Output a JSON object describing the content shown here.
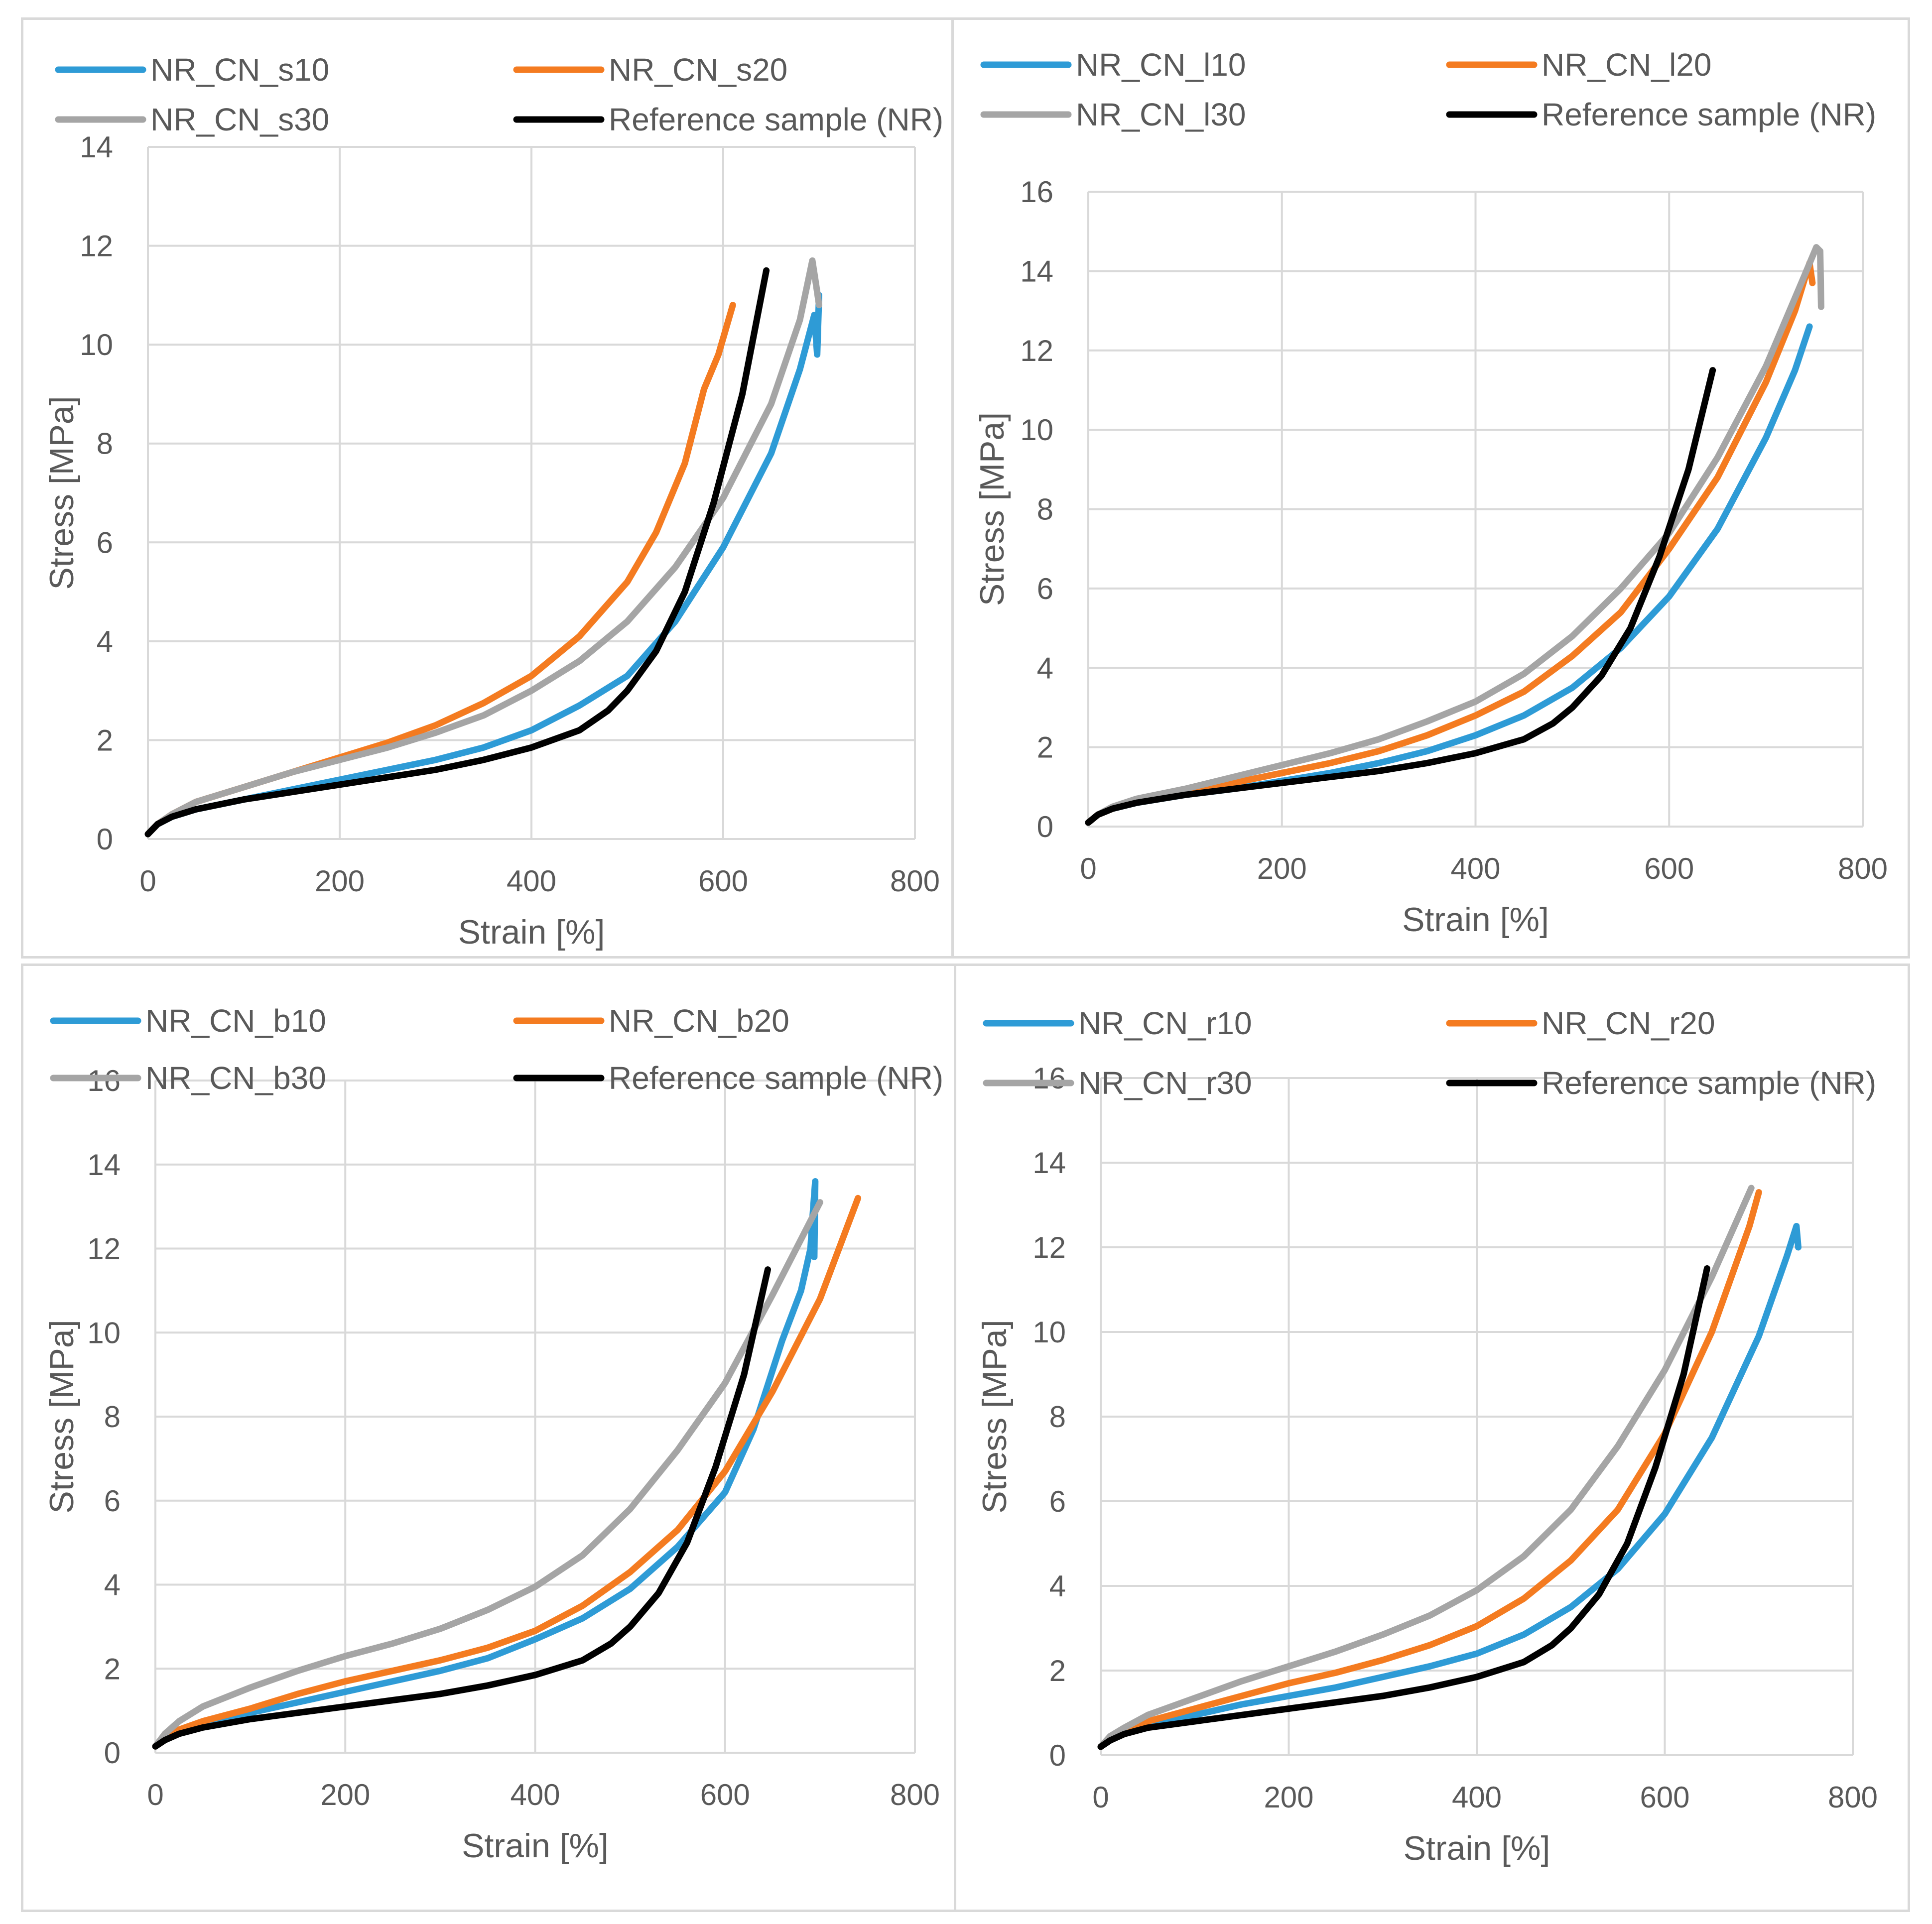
{
  "chart_data": [
    {
      "type": "line",
      "xlabel": "Strain [%]",
      "ylabel": "Stress [MPa]",
      "xlim": [
        0,
        800
      ],
      "ylim": [
        0,
        14
      ],
      "xticks": [
        0,
        200,
        400,
        600,
        800
      ],
      "yticks": [
        0,
        2,
        4,
        6,
        8,
        10,
        12,
        14
      ],
      "legend": "top",
      "series": [
        {
          "name": "NR_CN_s10",
          "color": "#2e9bd6",
          "x": [
            0,
            10,
            25,
            50,
            100,
            150,
            200,
            250,
            300,
            350,
            400,
            450,
            500,
            550,
            600,
            650,
            680,
            695,
            698,
            700
          ],
          "y": [
            0.1,
            0.3,
            0.45,
            0.6,
            0.8,
            1.0,
            1.2,
            1.4,
            1.6,
            1.85,
            2.2,
            2.7,
            3.3,
            4.4,
            5.9,
            7.8,
            9.5,
            10.6,
            9.8,
            11.0
          ]
        },
        {
          "name": "NR_CN_s20",
          "color": "#f47b20",
          "x": [
            0,
            10,
            25,
            50,
            100,
            150,
            200,
            250,
            300,
            350,
            400,
            450,
            500,
            530,
            560,
            580,
            595,
            610
          ],
          "y": [
            0.1,
            0.3,
            0.5,
            0.75,
            1.05,
            1.35,
            1.65,
            1.95,
            2.3,
            2.75,
            3.3,
            4.1,
            5.2,
            6.2,
            7.6,
            9.1,
            9.8,
            10.8
          ]
        },
        {
          "name": "NR_CN_s30",
          "color": "#a5a5a5",
          "x": [
            0,
            10,
            25,
            50,
            100,
            150,
            200,
            250,
            300,
            350,
            400,
            450,
            500,
            550,
            600,
            650,
            680,
            693,
            697,
            700
          ],
          "y": [
            0.1,
            0.3,
            0.5,
            0.75,
            1.05,
            1.35,
            1.6,
            1.85,
            2.15,
            2.5,
            3.0,
            3.6,
            4.4,
            5.5,
            6.9,
            8.8,
            10.5,
            11.7,
            11.2,
            10.8
          ]
        },
        {
          "name": "Reference sample (NR)",
          "color": "#000000",
          "x": [
            0,
            10,
            25,
            50,
            100,
            150,
            200,
            250,
            300,
            350,
            400,
            450,
            480,
            500,
            530,
            560,
            590,
            620,
            645
          ],
          "y": [
            0.1,
            0.3,
            0.45,
            0.6,
            0.8,
            0.95,
            1.1,
            1.25,
            1.4,
            1.6,
            1.85,
            2.2,
            2.6,
            3.0,
            3.8,
            5.0,
            6.8,
            9.0,
            11.5
          ]
        }
      ]
    },
    {
      "type": "line",
      "xlabel": "Strain [%]",
      "ylabel": "Stress [MPa]",
      "xlim": [
        0,
        800
      ],
      "ylim": [
        0,
        16
      ],
      "xticks": [
        0,
        200,
        400,
        600,
        800
      ],
      "yticks": [
        0,
        2,
        4,
        6,
        8,
        10,
        12,
        14,
        16
      ],
      "legend": "top",
      "series": [
        {
          "name": "NR_CN_l10",
          "color": "#2e9bd6",
          "x": [
            0,
            10,
            25,
            50,
            100,
            150,
            200,
            250,
            300,
            350,
            400,
            450,
            500,
            550,
            600,
            650,
            700,
            730,
            745
          ],
          "y": [
            0.1,
            0.3,
            0.45,
            0.6,
            0.8,
            0.95,
            1.15,
            1.35,
            1.6,
            1.9,
            2.3,
            2.8,
            3.5,
            4.5,
            5.8,
            7.5,
            9.8,
            11.5,
            12.6
          ]
        },
        {
          "name": "NR_CN_l20",
          "color": "#f47b20",
          "x": [
            0,
            10,
            25,
            50,
            100,
            150,
            200,
            250,
            300,
            350,
            400,
            450,
            500,
            550,
            600,
            650,
            700,
            730,
            745,
            748
          ],
          "y": [
            0.1,
            0.3,
            0.45,
            0.65,
            0.85,
            1.1,
            1.35,
            1.6,
            1.9,
            2.3,
            2.8,
            3.4,
            4.3,
            5.4,
            7.0,
            8.8,
            11.2,
            13.0,
            14.2,
            13.7
          ]
        },
        {
          "name": "NR_CN_l30",
          "color": "#a5a5a5",
          "x": [
            0,
            10,
            25,
            50,
            100,
            150,
            200,
            250,
            300,
            350,
            400,
            450,
            500,
            550,
            600,
            650,
            700,
            740,
            752,
            756,
            757
          ],
          "y": [
            0.1,
            0.3,
            0.5,
            0.7,
            0.95,
            1.25,
            1.55,
            1.85,
            2.2,
            2.65,
            3.15,
            3.85,
            4.8,
            6.0,
            7.4,
            9.3,
            11.6,
            13.9,
            14.6,
            14.5,
            13.1
          ]
        },
        {
          "name": "Reference sample (NR)",
          "color": "#000000",
          "x": [
            0,
            10,
            25,
            50,
            100,
            150,
            200,
            250,
            300,
            350,
            400,
            450,
            480,
            500,
            530,
            560,
            590,
            620,
            645
          ],
          "y": [
            0.1,
            0.3,
            0.45,
            0.6,
            0.8,
            0.95,
            1.1,
            1.25,
            1.4,
            1.6,
            1.85,
            2.2,
            2.6,
            3.0,
            3.8,
            5.0,
            6.8,
            9.0,
            11.5
          ]
        }
      ]
    },
    {
      "type": "line",
      "xlabel": "Strain [%]",
      "ylabel": "Stress [MPa]",
      "xlim": [
        0,
        800
      ],
      "ylim": [
        0,
        16
      ],
      "xticks": [
        0,
        200,
        400,
        600,
        800
      ],
      "yticks": [
        0,
        2,
        4,
        6,
        8,
        10,
        12,
        14,
        16
      ],
      "legend": "top",
      "series": [
        {
          "name": "NR_CN_b10",
          "color": "#2e9bd6",
          "x": [
            0,
            10,
            25,
            50,
            100,
            150,
            200,
            250,
            300,
            350,
            400,
            450,
            500,
            550,
            600,
            630,
            660,
            680,
            690,
            692,
            695,
            694
          ],
          "y": [
            0.15,
            0.35,
            0.5,
            0.7,
            0.95,
            1.2,
            1.45,
            1.7,
            1.95,
            2.25,
            2.7,
            3.2,
            3.9,
            4.9,
            6.2,
            7.7,
            9.8,
            11.0,
            12.0,
            12.7,
            13.6,
            11.8
          ]
        },
        {
          "name": "NR_CN_b20",
          "color": "#f47b20",
          "x": [
            0,
            10,
            25,
            50,
            100,
            150,
            200,
            250,
            300,
            350,
            400,
            450,
            500,
            550,
            600,
            650,
            700,
            740
          ],
          "y": [
            0.15,
            0.35,
            0.55,
            0.75,
            1.05,
            1.4,
            1.7,
            1.95,
            2.2,
            2.5,
            2.9,
            3.5,
            4.3,
            5.3,
            6.7,
            8.6,
            10.8,
            13.2
          ]
        },
        {
          "name": "NR_CN_b30",
          "color": "#a5a5a5",
          "x": [
            0,
            10,
            25,
            50,
            100,
            150,
            200,
            250,
            300,
            350,
            400,
            450,
            500,
            550,
            600,
            650,
            700
          ],
          "y": [
            0.15,
            0.45,
            0.75,
            1.1,
            1.55,
            1.95,
            2.3,
            2.6,
            2.95,
            3.4,
            3.95,
            4.7,
            5.8,
            7.2,
            8.8,
            10.9,
            13.1
          ]
        },
        {
          "name": "Reference sample (NR)",
          "color": "#000000",
          "x": [
            0,
            10,
            25,
            50,
            100,
            150,
            200,
            250,
            300,
            350,
            400,
            450,
            480,
            500,
            530,
            560,
            590,
            620,
            645
          ],
          "y": [
            0.15,
            0.3,
            0.45,
            0.6,
            0.8,
            0.95,
            1.1,
            1.25,
            1.4,
            1.6,
            1.85,
            2.2,
            2.6,
            3.0,
            3.8,
            5.0,
            6.8,
            9.0,
            11.5
          ]
        }
      ]
    },
    {
      "type": "line",
      "xlabel": "Strain [%]",
      "ylabel": "Stress [MPa]",
      "xlim": [
        0,
        800
      ],
      "ylim": [
        0,
        16
      ],
      "xticks": [
        0,
        200,
        400,
        600,
        800
      ],
      "yticks": [
        0,
        2,
        4,
        6,
        8,
        10,
        12,
        14,
        16
      ],
      "legend": "top",
      "series": [
        {
          "name": "NR_CN_r10",
          "color": "#2e9bd6",
          "x": [
            0,
            10,
            25,
            50,
            100,
            150,
            200,
            250,
            300,
            350,
            400,
            450,
            500,
            550,
            600,
            650,
            700,
            730,
            740,
            742
          ],
          "y": [
            0.2,
            0.4,
            0.55,
            0.7,
            0.95,
            1.2,
            1.4,
            1.6,
            1.85,
            2.1,
            2.4,
            2.85,
            3.5,
            4.4,
            5.7,
            7.5,
            9.9,
            11.8,
            12.5,
            12.0
          ]
        },
        {
          "name": "NR_CN_r20",
          "color": "#f47b20",
          "x": [
            0,
            10,
            25,
            50,
            100,
            150,
            200,
            250,
            300,
            350,
            400,
            450,
            500,
            550,
            600,
            650,
            690,
            700
          ],
          "y": [
            0.2,
            0.4,
            0.55,
            0.8,
            1.1,
            1.4,
            1.7,
            1.95,
            2.25,
            2.6,
            3.05,
            3.7,
            4.6,
            5.8,
            7.6,
            10.0,
            12.5,
            13.3
          ]
        },
        {
          "name": "NR_CN_r30",
          "color": "#a5a5a5",
          "x": [
            0,
            10,
            25,
            50,
            100,
            150,
            200,
            250,
            300,
            350,
            400,
            450,
            500,
            550,
            600,
            650,
            692
          ],
          "y": [
            0.2,
            0.45,
            0.65,
            0.95,
            1.35,
            1.75,
            2.1,
            2.45,
            2.85,
            3.3,
            3.9,
            4.7,
            5.8,
            7.3,
            9.1,
            11.3,
            13.4
          ]
        },
        {
          "name": "Reference sample (NR)",
          "color": "#000000",
          "x": [
            0,
            10,
            25,
            50,
            100,
            150,
            200,
            250,
            300,
            350,
            400,
            450,
            480,
            500,
            530,
            560,
            590,
            620,
            645
          ],
          "y": [
            0.2,
            0.35,
            0.5,
            0.65,
            0.8,
            0.95,
            1.1,
            1.25,
            1.4,
            1.6,
            1.85,
            2.2,
            2.6,
            3.0,
            3.8,
            5.0,
            6.8,
            9.0,
            11.5
          ]
        }
      ]
    }
  ]
}
